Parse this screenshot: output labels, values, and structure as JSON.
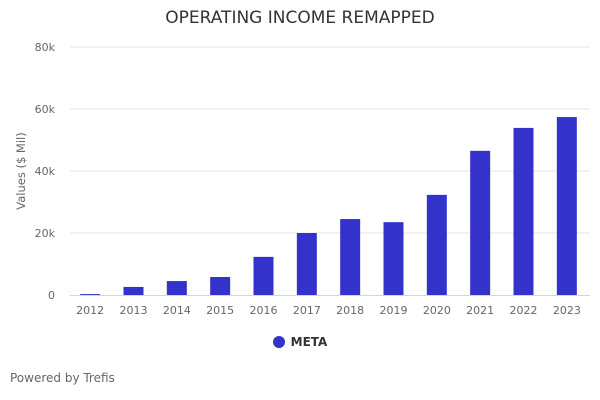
{
  "chart_data": {
    "type": "bar",
    "title": "OPERATING INCOME REMAPPED",
    "xlabel": "",
    "ylabel": "Values ($ Mil)",
    "categories": [
      "2012",
      "2013",
      "2014",
      "2015",
      "2016",
      "2017",
      "2018",
      "2019",
      "2020",
      "2021",
      "2022",
      "2023"
    ],
    "series": [
      {
        "name": "META",
        "color": "#3333cc",
        "values": [
          300,
          2600,
          4500,
          5800,
          12300,
          20000,
          24500,
          23500,
          32300,
          46500,
          53900,
          57400
        ]
      }
    ],
    "ylim": [
      0,
      80000
    ],
    "yticks": [
      0,
      20000,
      40000,
      60000,
      80000
    ],
    "ytick_labels": [
      "0",
      "20k",
      "40k",
      "60k",
      "80k"
    ],
    "grid": true,
    "legend": "bottom"
  },
  "footer": {
    "credit": "Powered by Trefis"
  }
}
